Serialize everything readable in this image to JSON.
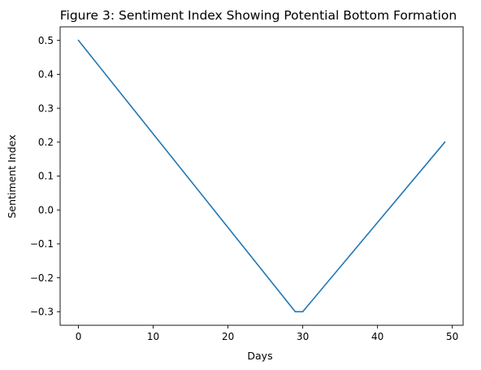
{
  "chart_data": {
    "type": "line",
    "title": "Figure 3: Sentiment Index Showing Potential Bottom Formation",
    "xlabel": "Days",
    "ylabel": "Sentiment Index",
    "xlim": [
      -2.45,
      51.45
    ],
    "ylim": [
      -0.34,
      0.54
    ],
    "x_ticks": [
      0,
      10,
      20,
      30,
      40,
      50
    ],
    "y_ticks": [
      -0.3,
      -0.2,
      -0.1,
      0.0,
      0.1,
      0.2,
      0.3,
      0.4,
      0.5
    ],
    "x_tick_labels": [
      "0",
      "10",
      "20",
      "30",
      "40",
      "50"
    ],
    "y_tick_labels": [
      "−0.3",
      "−0.2",
      "−0.1",
      "0.0",
      "0.1",
      "0.2",
      "0.3",
      "0.4",
      "0.5"
    ],
    "grid": false,
    "series": [
      {
        "color": "#1f77b4",
        "x": [
          0,
          29,
          30,
          49
        ],
        "y": [
          0.5,
          -0.3,
          -0.3,
          0.2
        ]
      }
    ]
  }
}
